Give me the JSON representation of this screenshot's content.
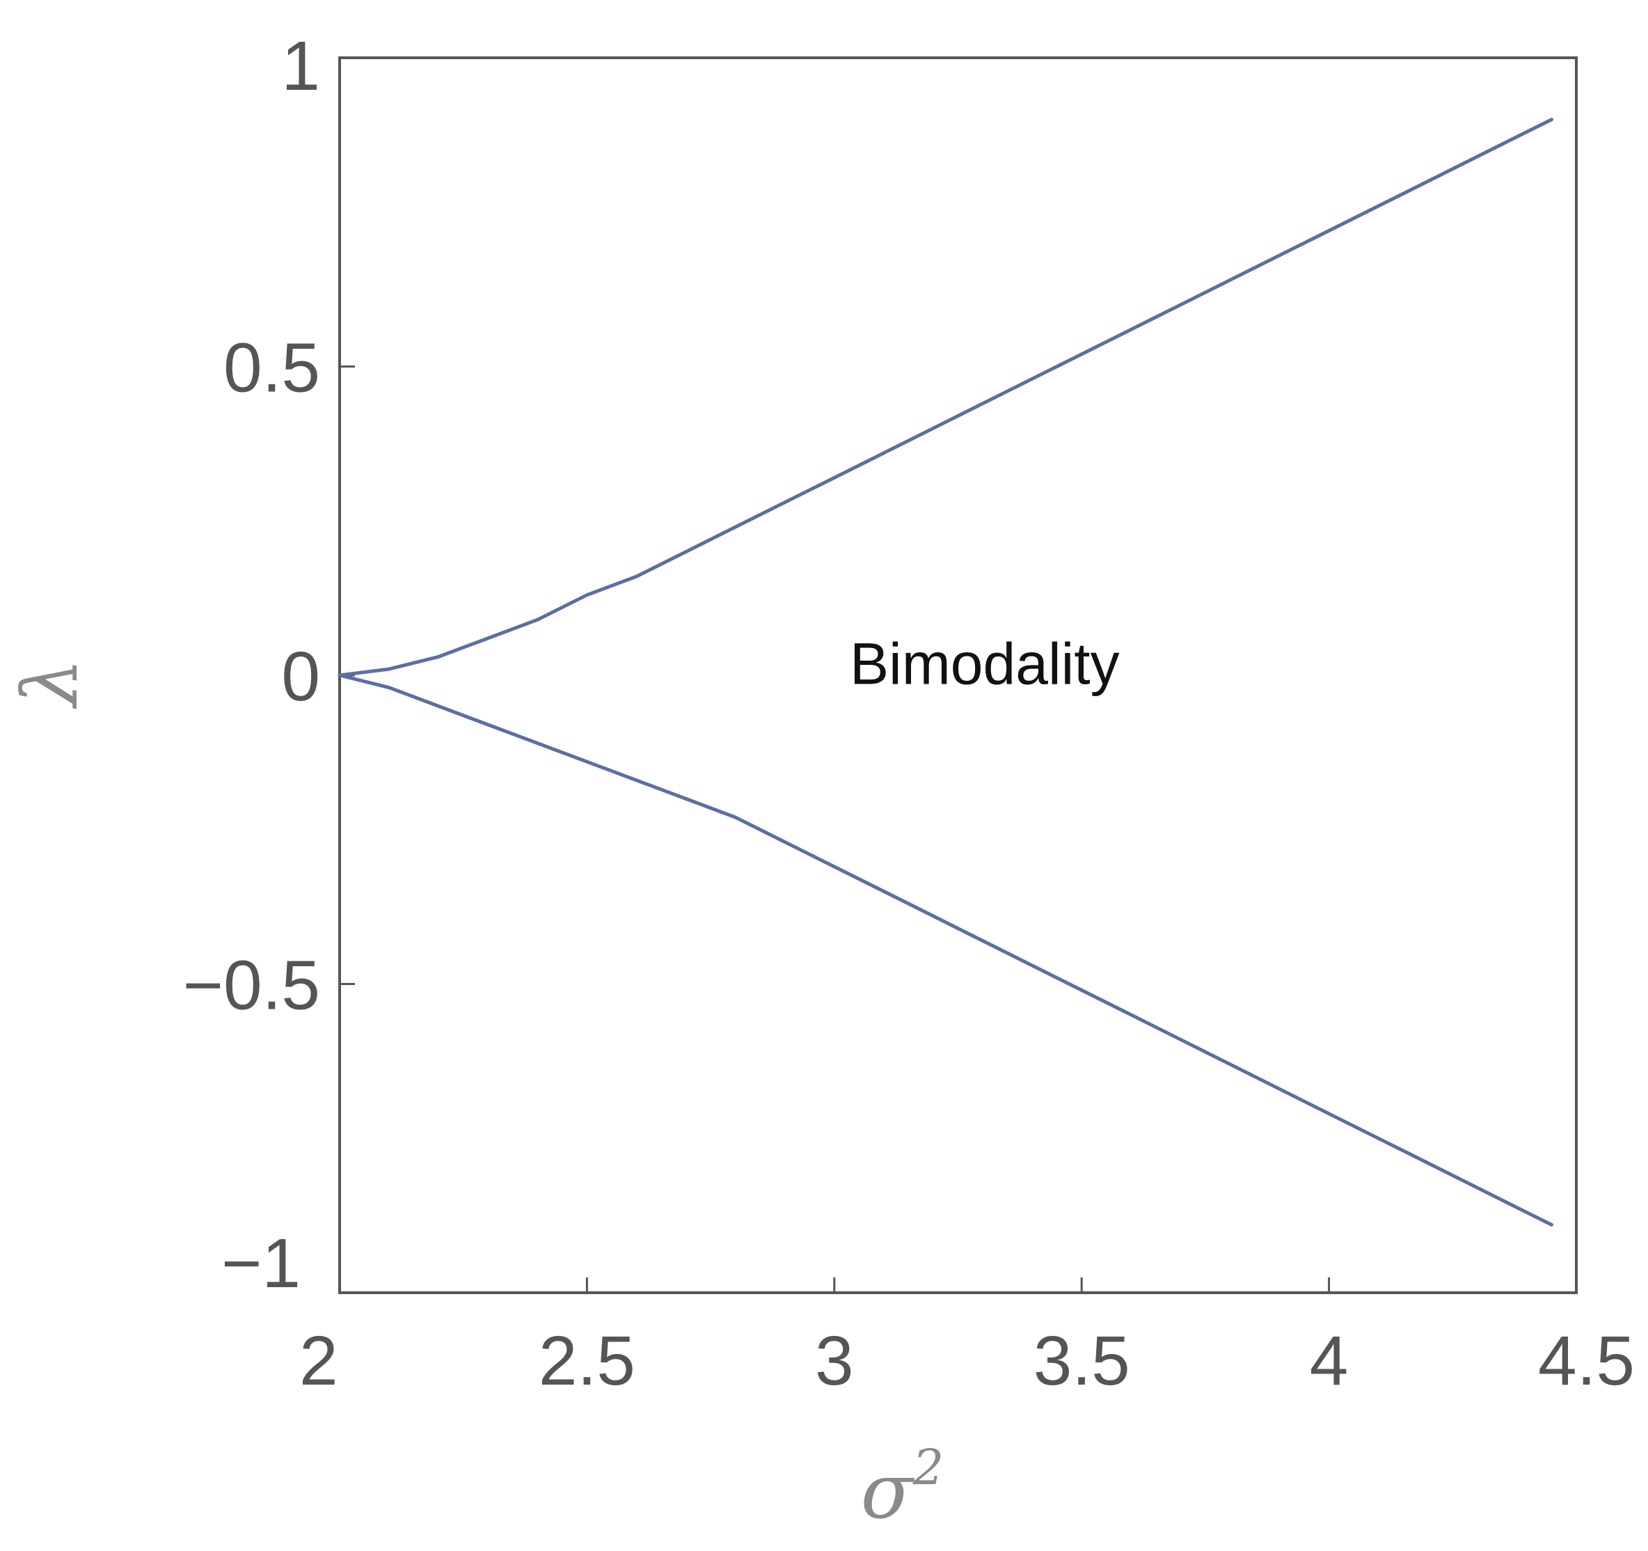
{
  "chart_data": {
    "type": "line",
    "xlabel": "σ",
    "xlabel_superscript": "2",
    "ylabel": "λ",
    "xlim": [
      2,
      4.5
    ],
    "ylim": [
      -1,
      1
    ],
    "x_ticks": [
      2,
      2.5,
      3,
      3.5,
      4,
      4.5
    ],
    "x_tick_labels": [
      "2",
      "2.5",
      "3",
      "3.5",
      "4",
      "4.5"
    ],
    "y_ticks": [
      -1,
      -0.5,
      0,
      0.5,
      1
    ],
    "y_tick_labels": [
      "−1",
      "−0.5",
      "0",
      "0.5",
      "1"
    ],
    "grid": false,
    "line_color": "#5a6fa3",
    "annotations": [
      {
        "text": "Bimodality",
        "x": 3.1,
        "y": 0.02
      }
    ],
    "series": [
      {
        "x": [
          2.0,
          2.1,
          2.2,
          2.3,
          2.4,
          2.5,
          2.6,
          2.7,
          2.8,
          2.9,
          3.0,
          3.1,
          3.2,
          3.3,
          3.4,
          3.5,
          3.6,
          3.7,
          3.8,
          3.9,
          4.0,
          4.1,
          4.2,
          4.3,
          4.4,
          4.45
        ],
        "y": [
          0.0,
          0.01,
          0.03,
          0.06,
          0.09,
          0.13,
          0.16,
          0.2,
          0.24,
          0.28,
          0.32,
          0.36,
          0.4,
          0.44,
          0.48,
          0.52,
          0.56,
          0.6,
          0.64,
          0.68,
          0.72,
          0.76,
          0.8,
          0.84,
          0.88,
          0.9
        ]
      },
      {
        "x": [
          2.0,
          2.1,
          2.2,
          2.3,
          2.4,
          2.5,
          2.6,
          2.7,
          2.8,
          2.9,
          3.0,
          3.1,
          3.2,
          3.3,
          3.4,
          3.5,
          3.6,
          3.7,
          3.8,
          3.9,
          4.0,
          4.1,
          4.2,
          4.3,
          4.4,
          4.45
        ],
        "y": [
          0.0,
          -0.02,
          -0.05,
          -0.08,
          -0.11,
          -0.14,
          -0.17,
          -0.2,
          -0.23,
          -0.27,
          -0.31,
          -0.35,
          -0.39,
          -0.43,
          -0.47,
          -0.51,
          -0.55,
          -0.59,
          -0.63,
          -0.67,
          -0.71,
          -0.75,
          -0.79,
          -0.83,
          -0.87,
          -0.89
        ]
      }
    ]
  }
}
